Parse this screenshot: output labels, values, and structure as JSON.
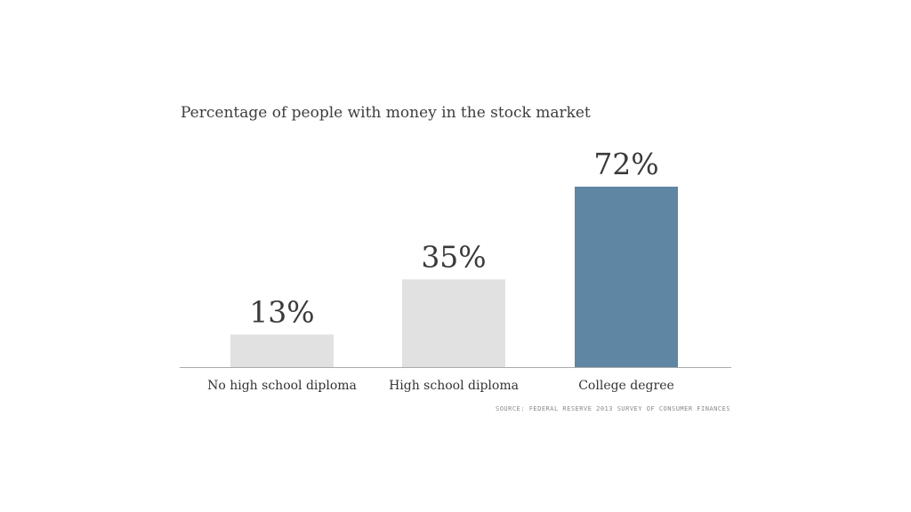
{
  "chart_data": {
    "type": "bar",
    "title": "Percentage of people with money in the stock market",
    "categories": [
      "No high school diploma",
      "High school diploma",
      "College degree"
    ],
    "values": [
      13,
      35,
      72
    ],
    "value_labels": [
      "13%",
      "35%",
      "72%"
    ],
    "colors": [
      "#e1e1e1",
      "#e1e1e1",
      "#5f86a3"
    ],
    "ylim": [
      0,
      72
    ],
    "grid": false,
    "source": "SOURCE: FEDERAL RESERVE 2013 SURVEY OF CONSUMER FINANCES"
  }
}
